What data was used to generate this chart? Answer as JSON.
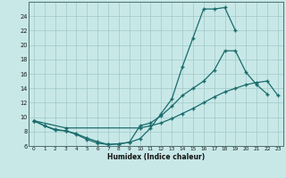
{
  "xlabel": "Humidex (Indice chaleur)",
  "background_color": "#c8e8e8",
  "grid_color": "#a0c8c8",
  "line_color": "#1a6b6b",
  "xlim": [
    -0.5,
    23.5
  ],
  "ylim": [
    6,
    26
  ],
  "xticks": [
    0,
    1,
    2,
    3,
    4,
    5,
    6,
    7,
    8,
    9,
    10,
    11,
    12,
    13,
    14,
    15,
    16,
    17,
    18,
    19,
    20,
    21,
    22,
    23
  ],
  "yticks": [
    6,
    8,
    10,
    12,
    14,
    16,
    18,
    20,
    22,
    24
  ],
  "line1_x": [
    0,
    1,
    2,
    3,
    4,
    5,
    6,
    7,
    8,
    9,
    10,
    11,
    12,
    13,
    14,
    15,
    16,
    17,
    18,
    19
  ],
  "line1_y": [
    9.5,
    8.8,
    8.3,
    8.1,
    7.6,
    6.9,
    6.4,
    6.2,
    6.3,
    6.5,
    7.0,
    8.5,
    10.5,
    12.5,
    17.0,
    21.0,
    25.0,
    25.0,
    25.2,
    22.0
  ],
  "line2_x": [
    0,
    1,
    2,
    3,
    4,
    5,
    6,
    7,
    8,
    9,
    10,
    11,
    12,
    13,
    14,
    15,
    16,
    17,
    18,
    19,
    20,
    21,
    22
  ],
  "line2_y": [
    9.5,
    8.8,
    8.2,
    8.1,
    7.7,
    7.1,
    6.6,
    6.2,
    6.3,
    6.5,
    8.8,
    9.2,
    10.2,
    11.5,
    13.0,
    14.0,
    15.0,
    16.5,
    19.2,
    19.2,
    16.2,
    14.5,
    13.2
  ],
  "line3_x": [
    0,
    3,
    10,
    11,
    12,
    13,
    14,
    15,
    16,
    17,
    18,
    19,
    20,
    21,
    22,
    23
  ],
  "line3_y": [
    9.5,
    8.5,
    8.5,
    8.8,
    9.2,
    9.8,
    10.5,
    11.2,
    12.0,
    12.8,
    13.5,
    14.0,
    14.5,
    14.8,
    15.0,
    13.0
  ]
}
